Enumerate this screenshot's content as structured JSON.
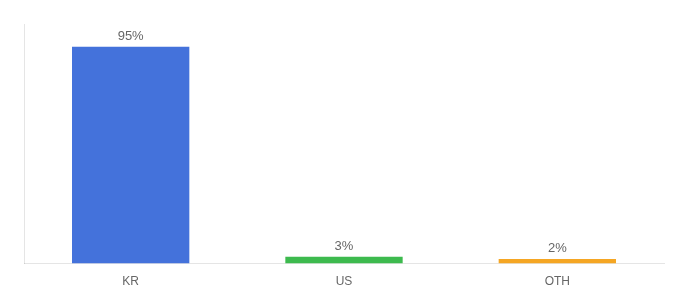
{
  "chart_data": {
    "type": "bar",
    "categories": [
      "KR",
      "US",
      "OTH"
    ],
    "values": [
      95,
      3,
      2
    ],
    "value_labels": [
      "95%",
      "3%",
      "2%"
    ],
    "colors": [
      "#4472db",
      "#3dba4e",
      "#f5a623"
    ],
    "ylim": [
      0,
      105
    ],
    "data_labels": true,
    "tick_labels": "x",
    "grid": false
  }
}
